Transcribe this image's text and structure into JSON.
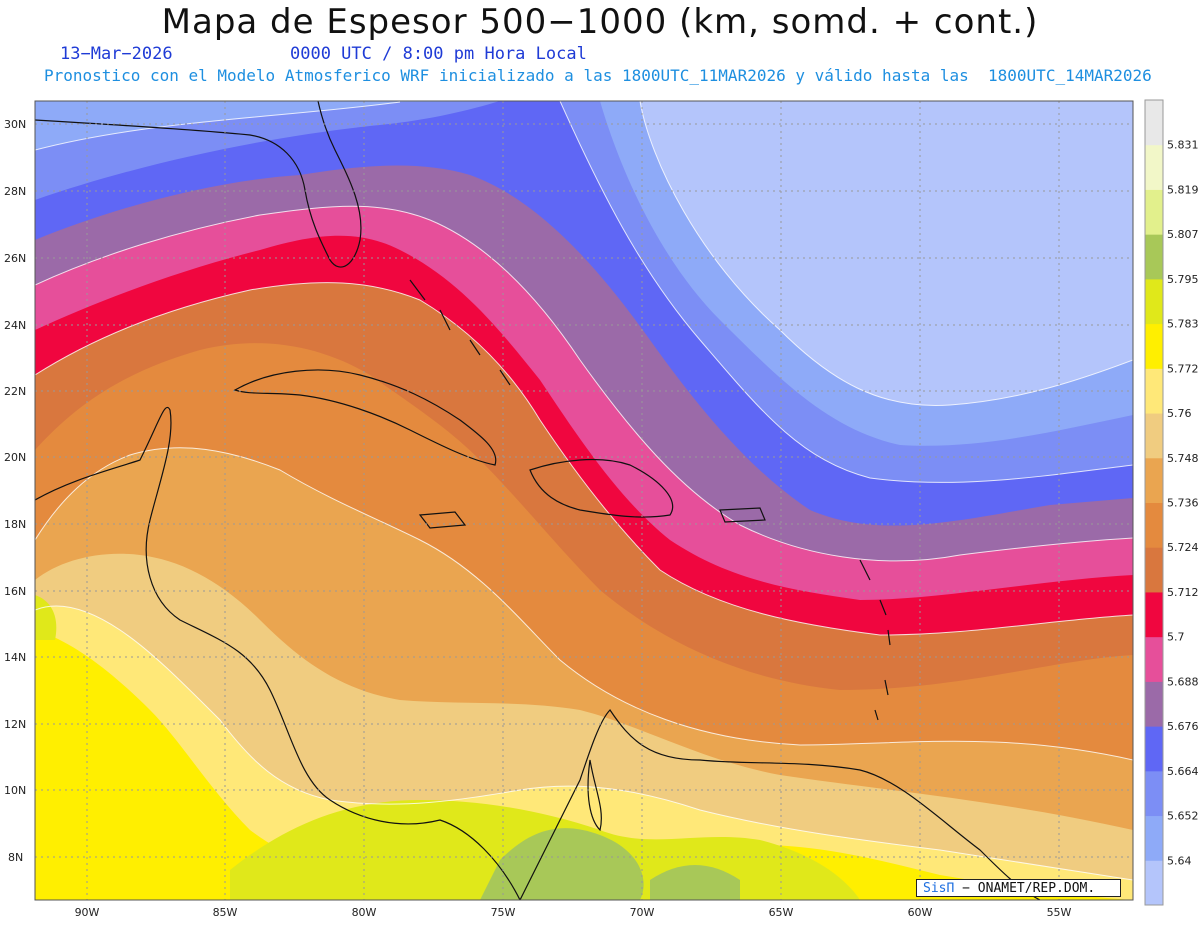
{
  "header": {
    "title": "Mapa de Espesor 500−1000 (km, somd. + cont.)",
    "date": "13−Mar−2026",
    "utc": "0000 UTC / 8:00 pm Hora Local",
    "forecast": "Pronostico con el Modelo Atmosferico WRF inicializado a las 1800UTC_11MAR2026 y válido hasta las  1800UTC_14MAR2026"
  },
  "map": {
    "lat_ticks": [
      "30N",
      "28N",
      "26N",
      "24N",
      "22N",
      "20N",
      "18N",
      "16N",
      "14N",
      "12N",
      "10N",
      "8N"
    ],
    "lon_ticks": [
      "90W",
      "85W",
      "80W",
      "75W",
      "70W",
      "65W",
      "60W",
      "55W"
    ],
    "bands_colors": [
      "#ffef00",
      "#e0e81a",
      "#a8c858",
      "#ffe830",
      "#ffe878",
      "#f0cc80",
      "#eaa550",
      "#e48a3e",
      "#d9773e",
      "#f0063f",
      "#e64f9a",
      "#9b6aa8",
      "#5f67f5",
      "#7c8ef5",
      "#8eaaf8",
      "#b4c5fb"
    ]
  },
  "legend": {
    "labels": [
      "5.831",
      "5.819",
      "5.807",
      "5.795",
      "5.783",
      "5.772",
      "5.76",
      "5.748",
      "5.736",
      "5.724",
      "5.712",
      "5.7",
      "5.688",
      "5.676",
      "5.664",
      "5.652",
      "5.64"
    ],
    "colors": [
      "#e8e8e8",
      "#f2f7c8",
      "#e2f08c",
      "#a8c858",
      "#e0e81a",
      "#ffef00",
      "#ffe878",
      "#f0cc80",
      "#eaa550",
      "#e48a3e",
      "#d9773e",
      "#f0063f",
      "#e64f9a",
      "#9b6aa8",
      "#5f67f5",
      "#7c8ef5",
      "#8eaaf8",
      "#b4c5fb"
    ]
  },
  "credit": {
    "sis": "SisΠ",
    "org": " − ONAMET/REP.DOM."
  }
}
